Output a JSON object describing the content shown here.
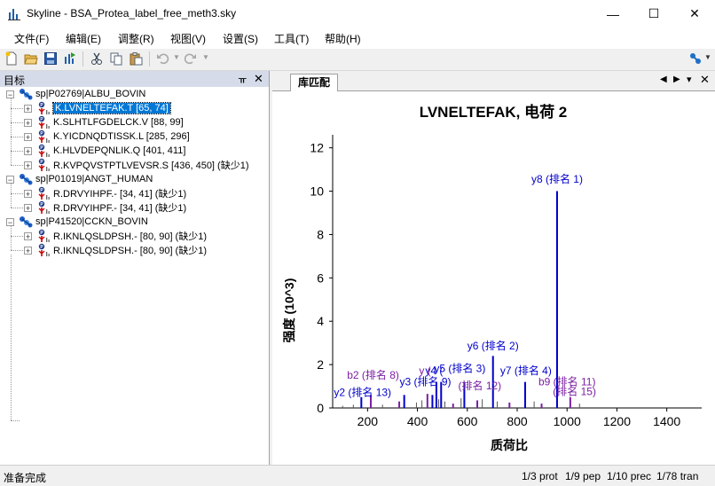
{
  "window": {
    "title": "Skyline - BSA_Protea_label_free_meth3.sky",
    "minimize": "—",
    "maximize": "☐",
    "close": "✕"
  },
  "menu": [
    "文件(F)",
    "编辑(E)",
    "调整(R)",
    "视图(V)",
    "设置(S)",
    "工具(T)",
    "帮助(H)"
  ],
  "toolbar": {
    "icons": [
      "new-icon",
      "open-icon",
      "save-icon",
      "import-icon",
      "cut-icon",
      "copy-icon",
      "paste-icon",
      "undo-icon",
      "redo-icon",
      "connect-icon"
    ]
  },
  "targets_panel": {
    "title": "目标",
    "pin": "ᚂ",
    "close": "✕"
  },
  "tree": [
    {
      "label": "sp|P02769|ALBU_BOVIN",
      "level": 0,
      "type": "protein"
    },
    {
      "label": "K.LVNELTEFAK.T [65, 74]",
      "level": 1,
      "type": "peptide",
      "selected": true
    },
    {
      "label": "K.SLHTLFGDELCK.V [88, 99]",
      "level": 1,
      "type": "peptide"
    },
    {
      "label": "K.YICDNQDTISSK.L [285, 296]",
      "level": 1,
      "type": "peptide"
    },
    {
      "label": "K.HLVDEPQNLIK.Q [401, 411]",
      "level": 1,
      "type": "peptide"
    },
    {
      "label": "R.KVPQVSTPTLVEVSR.S [436, 450] (缺少1)",
      "level": 1,
      "type": "peptide"
    },
    {
      "label": "sp|P01019|ANGT_HUMAN",
      "level": 0,
      "type": "protein"
    },
    {
      "label": "R.DRVYIHPF.- [34, 41] (缺少1)",
      "level": 1,
      "type": "peptide"
    },
    {
      "label": "R.DRVYIHPF.- [34, 41] (缺少1)",
      "level": 1,
      "type": "peptide"
    },
    {
      "label": "sp|P41520|CCKN_BOVIN",
      "level": 0,
      "type": "protein"
    },
    {
      "label": "R.IKNLQSLDPSH.- [80, 90] (缺少1)",
      "level": 1,
      "type": "peptide"
    },
    {
      "label": "R.IKNLQSLDPSH.- [80, 90] (缺少1)",
      "level": 1,
      "type": "peptide"
    }
  ],
  "library_panel": {
    "tab": "库匹配",
    "nav_left": "◀",
    "nav_right": "▶",
    "nav_menu": "▾",
    "close": "✕"
  },
  "chart_data": {
    "type": "bar",
    "title": "LVNELTEFAK, 电荷 2",
    "xlabel": "质荷比",
    "ylabel": "强度 (10^3)",
    "xlim": [
      60,
      1540
    ],
    "ylim": [
      0,
      12.6
    ],
    "xticks": [
      200,
      400,
      600,
      800,
      1000,
      1200,
      1400
    ],
    "yticks": [
      0,
      2,
      4,
      6,
      8,
      10,
      12
    ],
    "colors": {
      "y": "#0000cc",
      "b": "#7b1fa2",
      "other": "#555555"
    },
    "peaks": [
      {
        "mz": 100,
        "intensity": 0.1,
        "ion": "other"
      },
      {
        "mz": 143,
        "intensity": 0.15,
        "ion": "other"
      },
      {
        "mz": 175,
        "intensity": 0.5,
        "ion": "y"
      },
      {
        "mz": 213,
        "intensity": 0.6,
        "ion": "b"
      },
      {
        "mz": 260,
        "intensity": 0.15,
        "ion": "other"
      },
      {
        "mz": 327,
        "intensity": 0.3,
        "ion": "b"
      },
      {
        "mz": 347,
        "intensity": 0.6,
        "ion": "y"
      },
      {
        "mz": 396,
        "intensity": 0.25,
        "ion": "other"
      },
      {
        "mz": 418,
        "intensity": 0.35,
        "ion": "other"
      },
      {
        "mz": 440,
        "intensity": 0.65,
        "ion": "b"
      },
      {
        "mz": 460,
        "intensity": 0.6,
        "ion": "y"
      },
      {
        "mz": 476,
        "intensity": 1.2,
        "ion": "y"
      },
      {
        "mz": 485,
        "intensity": 0.4,
        "ion": "other"
      },
      {
        "mz": 495,
        "intensity": 1.2,
        "ion": "y"
      },
      {
        "mz": 510,
        "intensity": 0.3,
        "ion": "other"
      },
      {
        "mz": 543,
        "intensity": 0.2,
        "ion": "b"
      },
      {
        "mz": 575,
        "intensity": 0.45,
        "ion": "other"
      },
      {
        "mz": 588,
        "intensity": 1.2,
        "ion": "y"
      },
      {
        "mz": 640,
        "intensity": 0.35,
        "ion": "b"
      },
      {
        "mz": 660,
        "intensity": 0.4,
        "ion": "other"
      },
      {
        "mz": 703,
        "intensity": 2.4,
        "ion": "y"
      },
      {
        "mz": 720,
        "intensity": 0.3,
        "ion": "other"
      },
      {
        "mz": 769,
        "intensity": 0.25,
        "ion": "b"
      },
      {
        "mz": 832,
        "intensity": 1.2,
        "ion": "y"
      },
      {
        "mz": 868,
        "intensity": 0.3,
        "ion": "other"
      },
      {
        "mz": 898,
        "intensity": 0.2,
        "ion": "b"
      },
      {
        "mz": 960,
        "intensity": 10.0,
        "ion": "y"
      },
      {
        "mz": 1013,
        "intensity": 0.5,
        "ion": "b"
      },
      {
        "mz": 1050,
        "intensity": 0.2,
        "ion": "other"
      }
    ],
    "annotations": [
      {
        "text": "y8 (排名 1)",
        "mz": 960,
        "y": 10.4,
        "ion": "y"
      },
      {
        "text": "y6 (排名 2)",
        "mz": 703,
        "y": 2.7,
        "ion": "y"
      },
      {
        "text": "y7 (排名 4)",
        "mz": 835,
        "y": 1.55,
        "ion": "y"
      },
      {
        "text": "y5 (排名 3)",
        "mz": 570,
        "y": 1.65,
        "ion": "y"
      },
      {
        "text": "b2 (排名 8)",
        "mz": 222,
        "y": 1.35,
        "ion": "b"
      },
      {
        "text": "y4 (",
        "mz": 467,
        "y": 1.55,
        "ion": "y"
      },
      {
        "text": "y (",
        "mz": 430,
        "y": 1.55,
        "ion": "b"
      },
      {
        "text": "y3 (排名 9)",
        "mz": 432,
        "y": 1.05,
        "ion": "y"
      },
      {
        "text": "b9 (排名 11)",
        "mz": 1000,
        "y": 1.05,
        "ion": "b"
      },
      {
        "text": "(排名 12)",
        "mz": 650,
        "y": 0.85,
        "ion": "b"
      },
      {
        "text": "y2 (排名 13)",
        "mz": 180,
        "y": 0.55,
        "ion": "y"
      },
      {
        "text": "(排名 15)",
        "mz": 1030,
        "y": 0.6,
        "ion": "b"
      }
    ]
  },
  "status": {
    "ready": "准备完成",
    "protein": "1/3 prot",
    "peptide": "1/9 pep",
    "precursor": "1/10 prec",
    "transition": "1/78 tran"
  }
}
